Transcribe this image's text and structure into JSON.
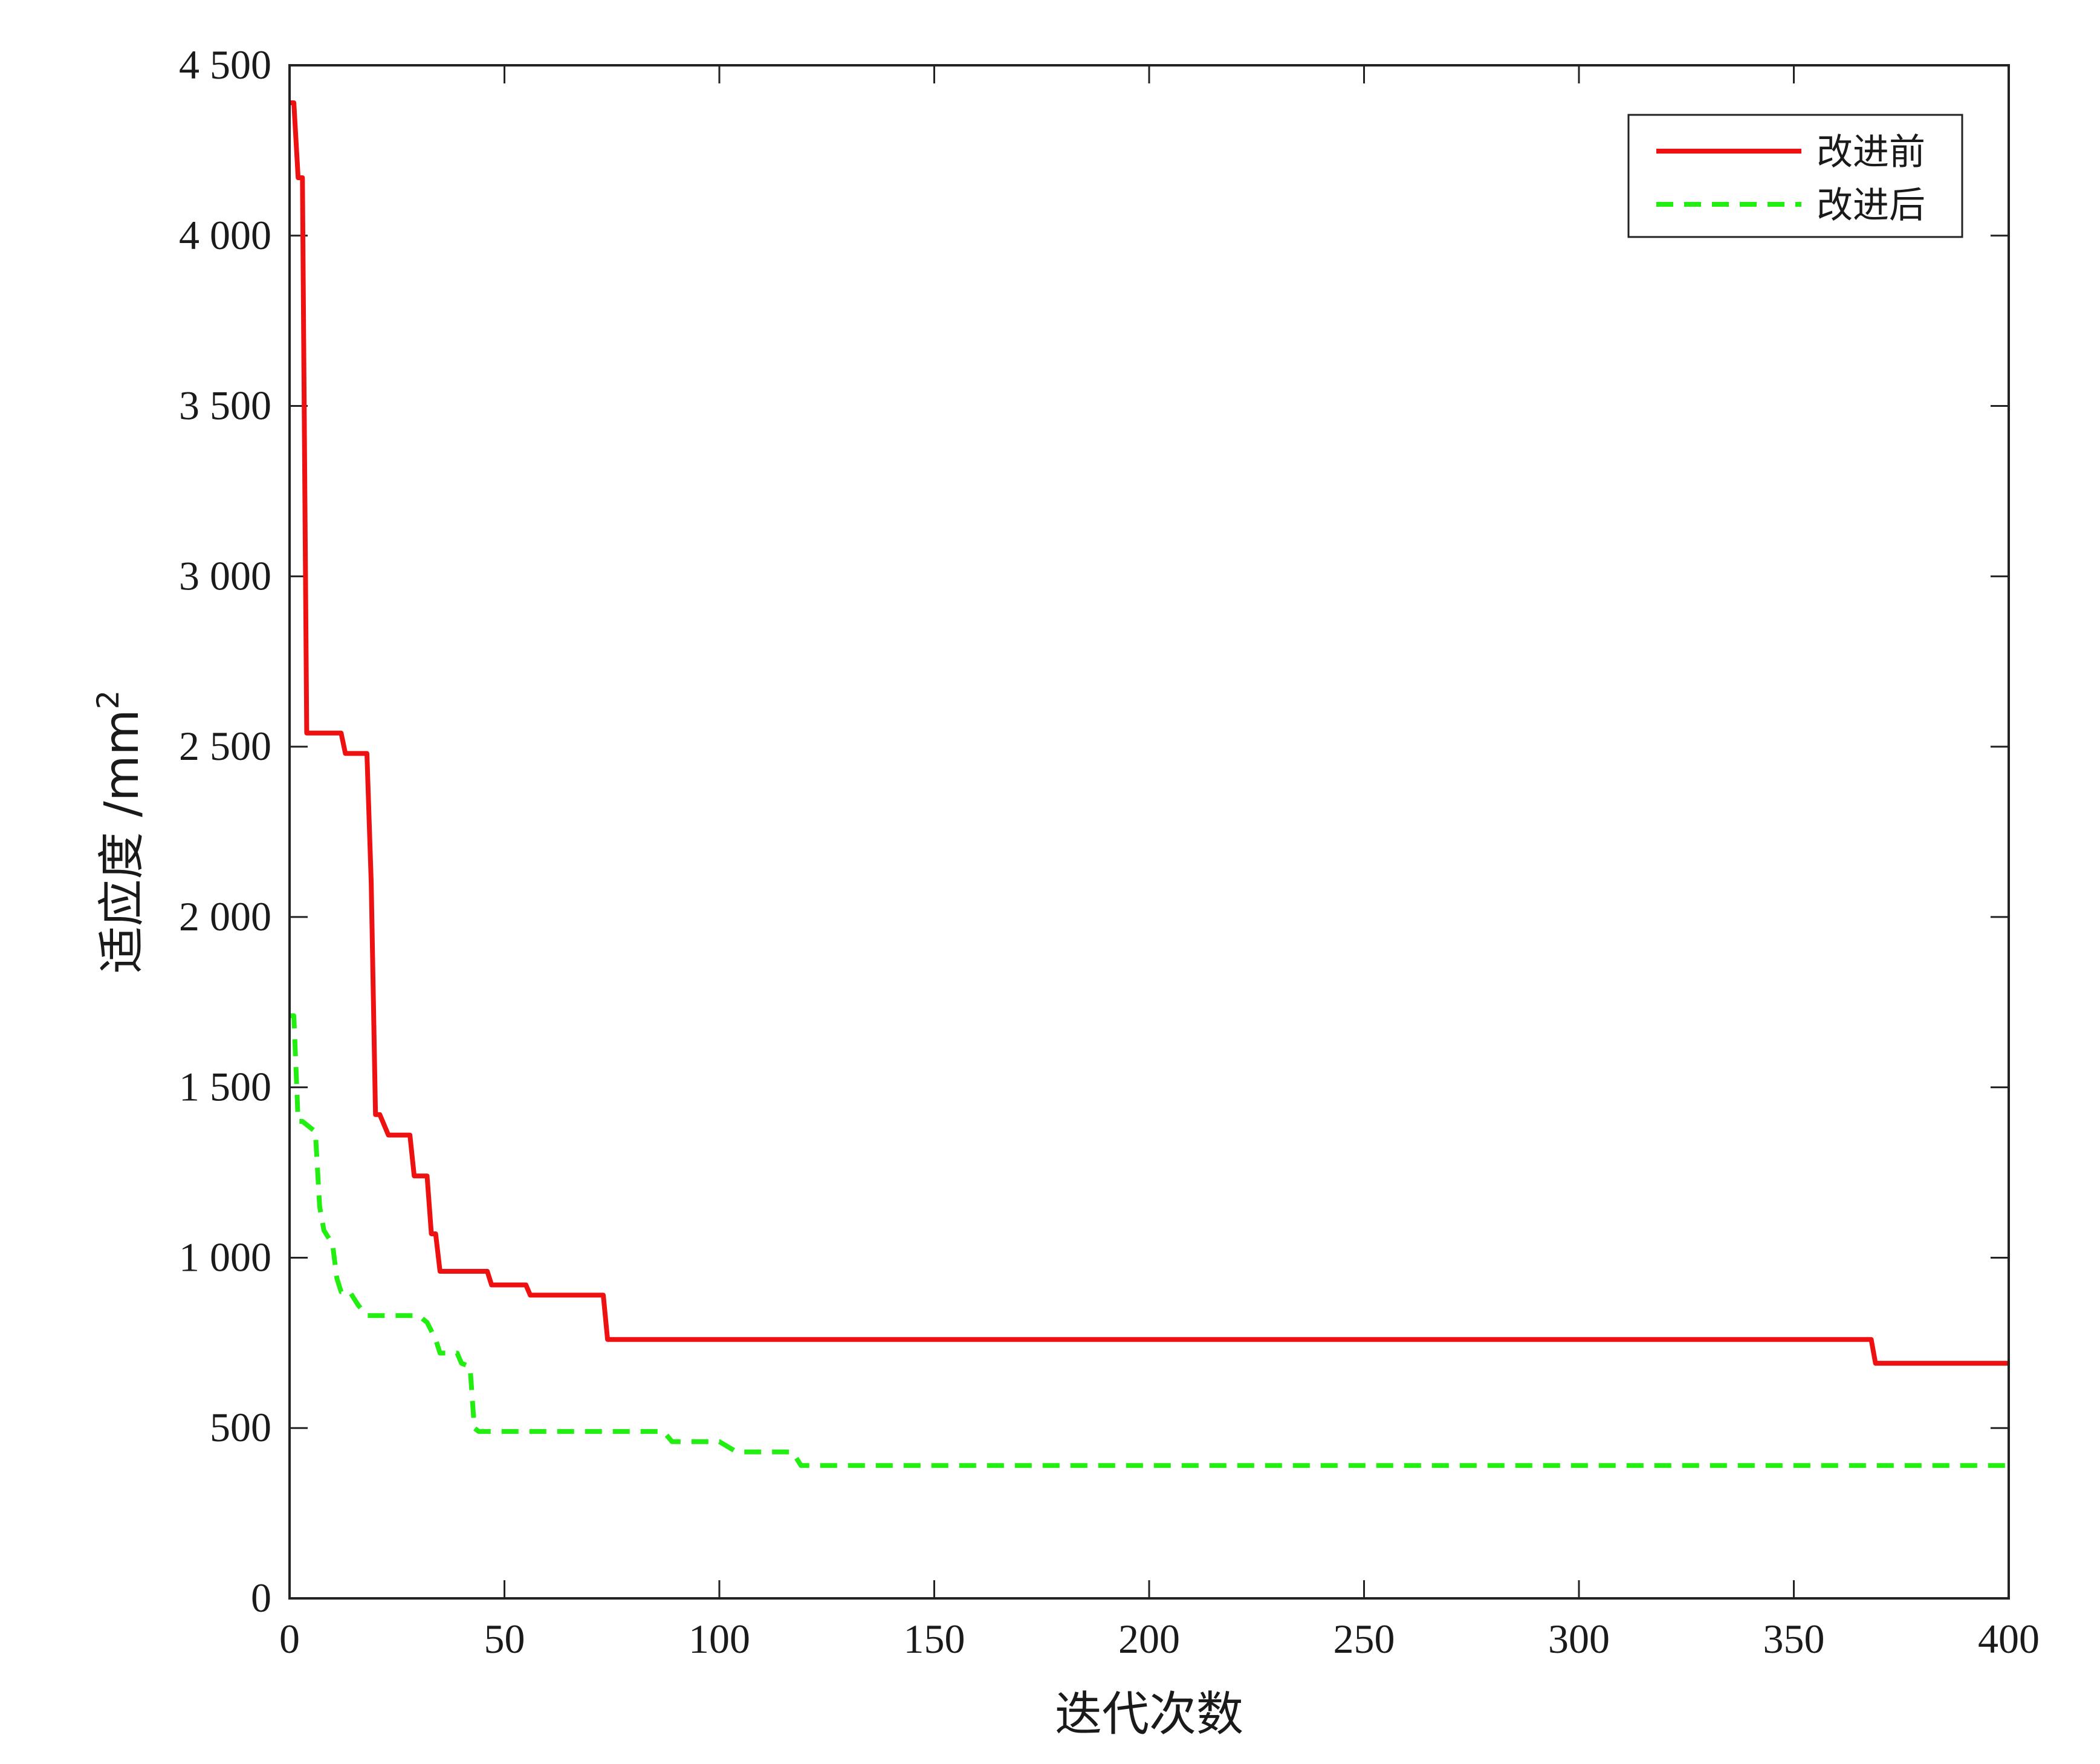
{
  "chart_data": {
    "type": "line",
    "title": "",
    "xlabel": "迭代次数",
    "ylabel": "适应度 /mm",
    "ylabel_superscript": "2",
    "xlim": [
      0,
      400
    ],
    "ylim": [
      0,
      4500
    ],
    "xticks": [
      0,
      50,
      100,
      150,
      200,
      250,
      300,
      350,
      400
    ],
    "xtick_labels": [
      "0",
      "50",
      "100",
      "150",
      "200",
      "250",
      "300",
      "350",
      "400"
    ],
    "yticks": [
      0,
      500,
      1000,
      1500,
      2000,
      2500,
      3000,
      3500,
      4000,
      4500
    ],
    "ytick_labels": [
      "0",
      "500",
      "1 000",
      "1 500",
      "2 000",
      "2 500",
      "3 000",
      "3 500",
      "4 000",
      "4 500"
    ],
    "grid": false,
    "legend_position": "top-right",
    "series": [
      {
        "name": "改进前",
        "color": "#ee1111",
        "style": "solid",
        "x": [
          0,
          1,
          2,
          3,
          4,
          5,
          12,
          13,
          18,
          19,
          20,
          21,
          23,
          24,
          28,
          29,
          32,
          33,
          34,
          35,
          46,
          47,
          55,
          56,
          73,
          74,
          367,
          368,
          369,
          400
        ],
        "y": [
          4390,
          4390,
          4170,
          4170,
          2540,
          2540,
          2540,
          2480,
          2480,
          2100,
          1420,
          1420,
          1360,
          1360,
          1360,
          1240,
          1240,
          1070,
          1070,
          960,
          960,
          920,
          920,
          890,
          890,
          760,
          760,
          760,
          690,
          690
        ]
      },
      {
        "name": "改进后",
        "color": "#22ee11",
        "style": "dashed",
        "x": [
          0,
          1,
          2,
          3,
          6,
          7,
          8,
          10,
          11,
          12,
          14,
          16,
          18,
          30,
          32,
          34,
          35,
          39,
          40,
          42,
          43,
          44,
          87,
          89,
          100,
          104,
          117,
          119,
          400
        ],
        "y": [
          1710,
          1710,
          1400,
          1400,
          1370,
          1150,
          1080,
          1040,
          940,
          900,
          900,
          860,
          830,
          830,
          810,
          760,
          720,
          720,
          690,
          680,
          500,
          490,
          490,
          460,
          460,
          430,
          430,
          390,
          390
        ]
      }
    ]
  }
}
